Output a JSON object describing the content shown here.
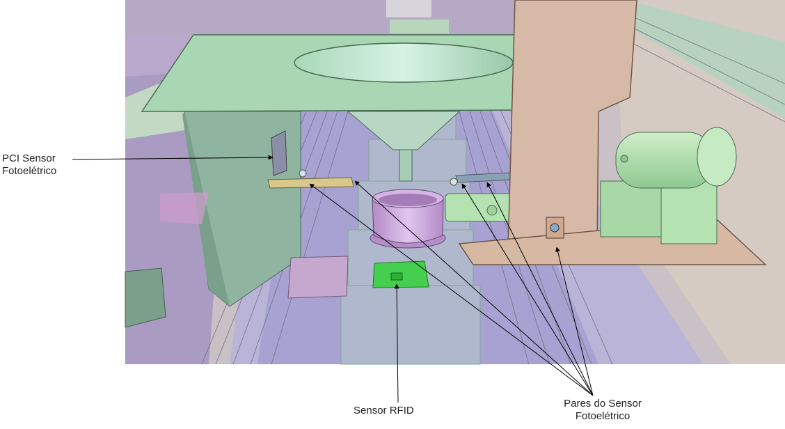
{
  "labels": {
    "pci_line1": "PCI Sensor",
    "pci_line2": "Fotoelétrico",
    "rfid": "Sensor RFID",
    "pares_line1": "Pares do Sensor",
    "pares_line2": "Fotoelétrico"
  },
  "colors": {
    "plate": "#a9d6b3",
    "wood": "#d6b9a6",
    "floor_purple": "#a8a4d6",
    "rfid_green": "#32d23a",
    "cup": "#c9a7dc",
    "motor": "#b4e2b0"
  }
}
